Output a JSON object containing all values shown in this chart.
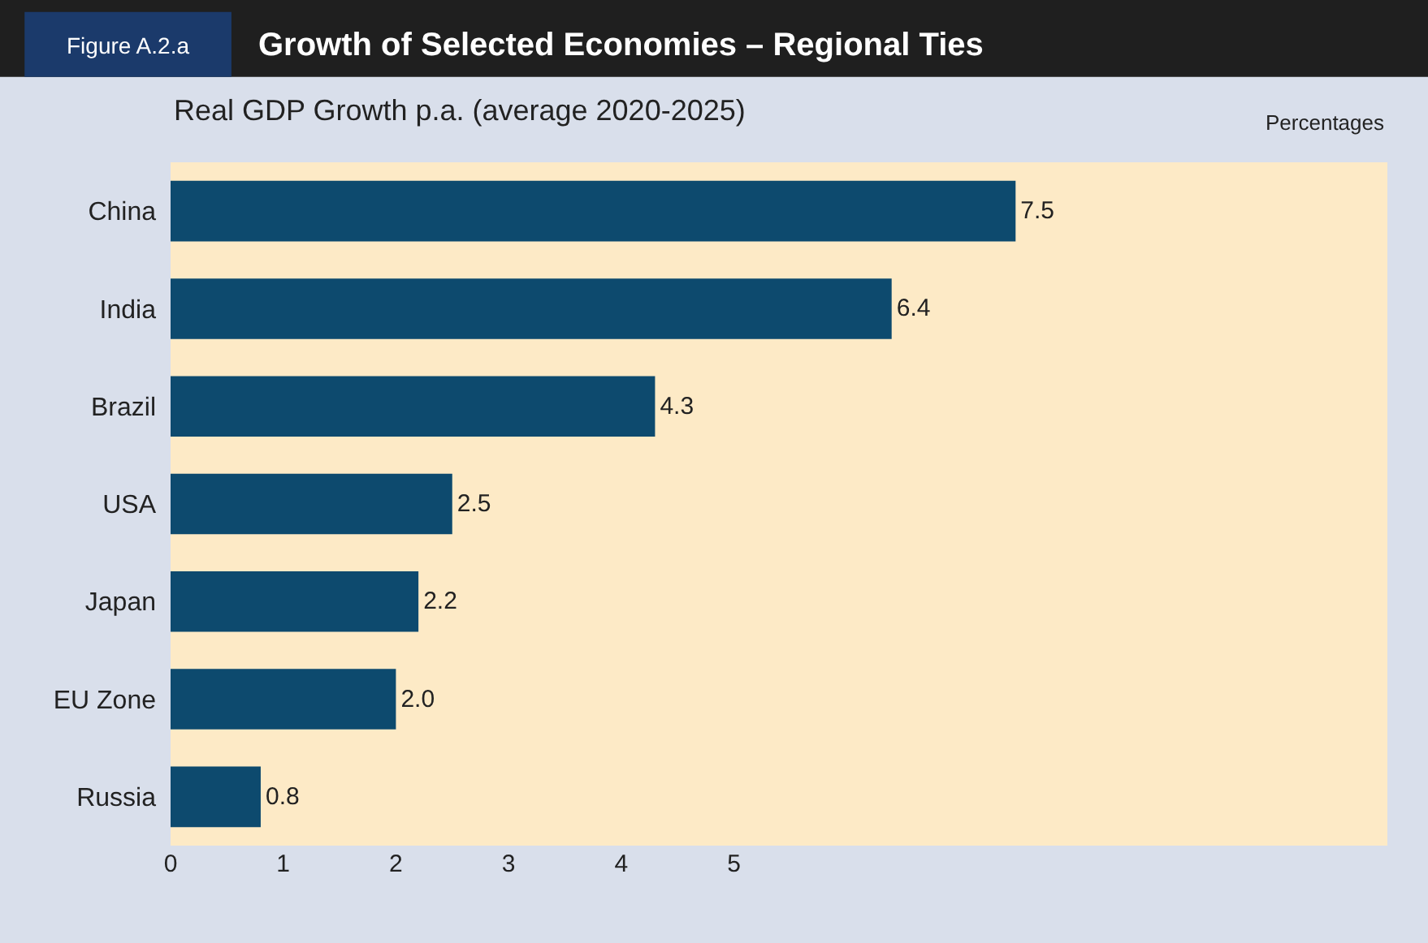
{
  "chart_data": {
    "type": "bar",
    "orientation": "horizontal",
    "title": "Growth of Selected Economies – Regional Ties",
    "subtitle": "Real GDP Growth p.a. (average 2020-2025)",
    "annotations": [
      "Figure A.2.a",
      "Percentages"
    ],
    "categories": [
      "China",
      "India",
      "Brazil",
      "USA",
      "Japan",
      "EU Zone",
      "Russia"
    ],
    "values": [
      7.5,
      6.4,
      4.3,
      2.5,
      2.2,
      2.0,
      0.8
    ],
    "color": "#0d4a6e",
    "value_labels": [
      "7.5",
      "6.4",
      "4.3",
      "2.5",
      "2.2",
      "2.0",
      "0.8"
    ],
    "xlim": [
      0,
      10.8
    ],
    "xticks": [
      0,
      1,
      2,
      3,
      4,
      5
    ],
    "grid": false,
    "legend": false
  }
}
